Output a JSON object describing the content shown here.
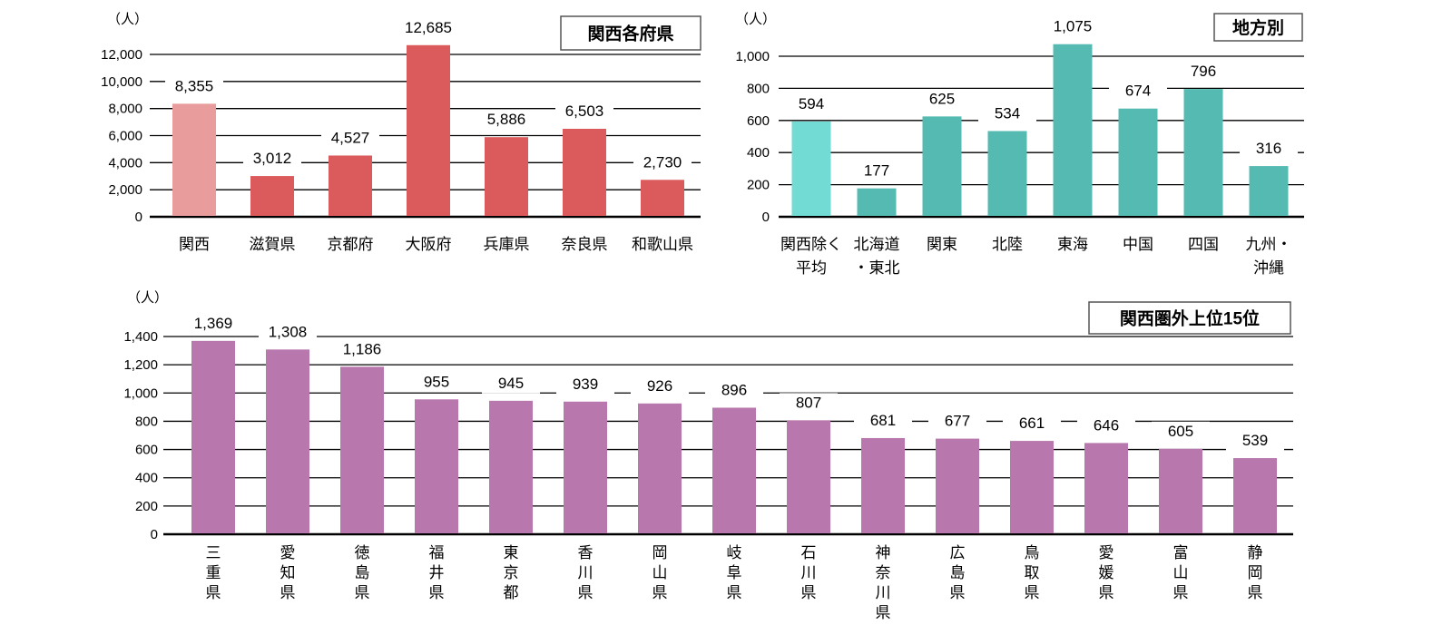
{
  "chart_data": [
    {
      "type": "bar",
      "title": "関西各府県",
      "unit": "（人）",
      "categories": [
        "関西",
        "滋賀県",
        "京都府",
        "大阪府",
        "兵庫県",
        "奈良県",
        "和歌山県"
      ],
      "values": [
        8355,
        3012,
        4527,
        12685,
        5886,
        6503,
        2730
      ],
      "value_labels": [
        "8,355",
        "3,012",
        "4,527",
        "12,685",
        "5,886",
        "6,503",
        "2,730"
      ],
      "yticks": [
        "0",
        "2,000",
        "4,000",
        "6,000",
        "8,000",
        "10,000",
        "12,000"
      ],
      "ytick_values": [
        0,
        2000,
        4000,
        6000,
        8000,
        10000,
        12000
      ],
      "ylim": [
        0,
        12000
      ],
      "grid": true,
      "colors": {
        "bar": "#db5a5b",
        "highlight": "#e99c9c"
      },
      "highlight_index": 0
    },
    {
      "type": "bar",
      "title": "地方別",
      "unit": "（人）",
      "categories": [
        [
          "関西除く",
          "平均"
        ],
        [
          "北海道",
          "・東北"
        ],
        [
          "関東"
        ],
        [
          "北陸"
        ],
        [
          "東海"
        ],
        [
          "中国"
        ],
        [
          "四国"
        ],
        [
          "九州・",
          "沖縄"
        ]
      ],
      "values": [
        594,
        177,
        625,
        534,
        1075,
        674,
        796,
        316
      ],
      "value_labels": [
        "594",
        "177",
        "625",
        "534",
        "1,075",
        "674",
        "796",
        "316"
      ],
      "yticks": [
        "0",
        "200",
        "400",
        "600",
        "800",
        "1,000"
      ],
      "ytick_values": [
        0,
        200,
        400,
        600,
        800,
        1000
      ],
      "ylim": [
        0,
        1000
      ],
      "grid": true,
      "colors": {
        "bar": "#55bbb2",
        "highlight": "#72dbd3"
      },
      "highlight_index": 0
    },
    {
      "type": "bar",
      "title": "関西圏外上位15位",
      "unit": "（人）",
      "categories": [
        "三重県",
        "愛知県",
        "徳島県",
        "福井県",
        "東京都",
        "香川県",
        "岡山県",
        "岐阜県",
        "石川県",
        "神奈川県",
        "広島県",
        "鳥取県",
        "愛媛県",
        "富山県",
        "静岡県"
      ],
      "values": [
        1369,
        1308,
        1186,
        955,
        945,
        939,
        926,
        896,
        807,
        681,
        677,
        661,
        646,
        605,
        539
      ],
      "value_labels": [
        "1,369",
        "1,308",
        "1,186",
        "955",
        "945",
        "939",
        "926",
        "896",
        "807",
        "681",
        "677",
        "661",
        "646",
        "605",
        "539"
      ],
      "yticks": [
        "0",
        "200",
        "400",
        "600",
        "800",
        "1,000",
        "1,200",
        "1,400"
      ],
      "ytick_values": [
        0,
        200,
        400,
        600,
        800,
        1000,
        1200,
        1400
      ],
      "ylim": [
        0,
        1400
      ],
      "grid": true,
      "colors": {
        "bar": "#b877ad"
      },
      "highlight_index": -1
    }
  ]
}
